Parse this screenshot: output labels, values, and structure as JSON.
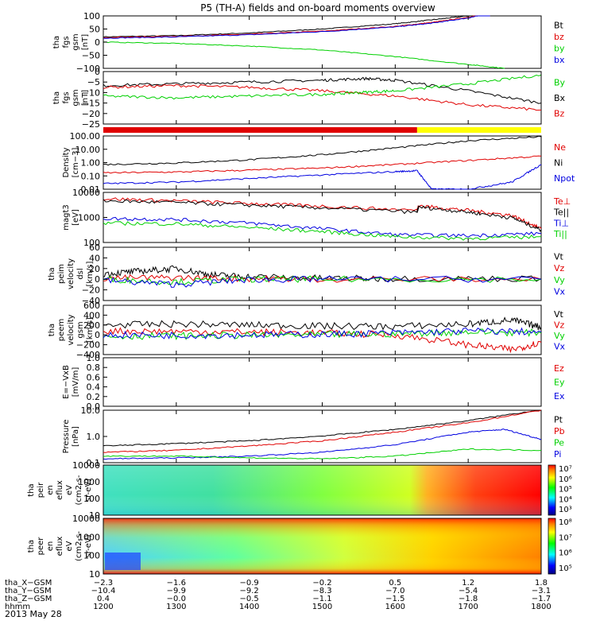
{
  "title": "P5 (TH-A) fields and on-board moments overview",
  "date": "2013 May 28",
  "colors": {
    "black": "#000000",
    "red": "#e00000",
    "green": "#00d000",
    "blue": "#0000e0",
    "yellow": "#ffff00"
  },
  "chart_data": [
    {
      "id": "fgs_gsm",
      "type": "line",
      "ylabel": [
        "tha",
        "fgs",
        "gsm",
        "[nT]"
      ],
      "yticks": [
        "100",
        "50",
        "0",
        "−50",
        "−100"
      ],
      "yrange": [
        -100,
        100
      ],
      "legend": [
        "Bt",
        "bz",
        "by",
        "bx"
      ],
      "series": [
        {
          "name": "Bt",
          "color": "#000000",
          "x": [
            1200,
            1300,
            1400,
            1500,
            1600,
            1650,
            1700,
            1730
          ],
          "y": [
            20,
            25,
            35,
            50,
            70,
            85,
            100,
            115
          ]
        },
        {
          "name": "bz",
          "color": "#e00000",
          "x": [
            1200,
            1300,
            1400,
            1500,
            1600,
            1650,
            1700,
            1730
          ],
          "y": [
            18,
            22,
            30,
            42,
            60,
            75,
            95,
            110
          ]
        },
        {
          "name": "bx",
          "color": "#0000e0",
          "x": [
            1200,
            1300,
            1400,
            1500,
            1600,
            1650,
            1700,
            1730
          ],
          "y": [
            15,
            20,
            28,
            40,
            58,
            72,
            92,
            110
          ]
        },
        {
          "name": "by",
          "color": "#00d000",
          "x": [
            1200,
            1300,
            1400,
            1500,
            1600,
            1700,
            1750
          ],
          "y": [
            0,
            -5,
            -15,
            -30,
            -55,
            -85,
            -100
          ]
        }
      ]
    },
    {
      "id": "fgs_gsm_zoom",
      "type": "line",
      "ylabel": [
        "tha",
        "fgs",
        "gsm",
        "[nT]"
      ],
      "yticks": [
        "0",
        "−5",
        "−10",
        "−15",
        "−20",
        "−25"
      ],
      "yrange": [
        -28,
        2
      ],
      "legend": [
        "By",
        "Bx",
        "Bz"
      ],
      "series": [
        {
          "name": "Bx",
          "color": "#000000",
          "x": [
            1200,
            1300,
            1400,
            1500,
            1560,
            1600,
            1700,
            1800
          ],
          "y": [
            -6,
            -5,
            -4,
            -3,
            -2,
            -3,
            -9,
            -16
          ]
        },
        {
          "name": "Bz",
          "color": "#e00000",
          "x": [
            1200,
            1300,
            1400,
            1500,
            1600,
            1700,
            1800
          ],
          "y": [
            -7,
            -6,
            -7,
            -9,
            -12,
            -17,
            -20
          ]
        },
        {
          "name": "By",
          "color": "#00d000",
          "x": [
            1200,
            1300,
            1400,
            1500,
            1550,
            1600,
            1700,
            1800
          ],
          "y": [
            -12,
            -13,
            -12,
            -11,
            -10,
            -9,
            -5,
            0
          ]
        }
      ]
    },
    {
      "id": "density",
      "type": "line",
      "log": true,
      "ylabel": [
        "Density",
        "[cm−3]"
      ],
      "yticks": [
        "100.00",
        "10.00",
        "1.00",
        "0.10",
        "0.01"
      ],
      "yrange": [
        0.005,
        150
      ],
      "legend": [
        "Ne",
        "Ni",
        "Npot"
      ],
      "series": [
        {
          "name": "Ni",
          "color": "#000000",
          "x": [
            1200,
            1300,
            1400,
            1500,
            1600,
            1700,
            1800
          ],
          "y": [
            0.6,
            0.8,
            1.5,
            4,
            15,
            60,
            130
          ]
        },
        {
          "name": "Ne",
          "color": "#e00000",
          "x": [
            1200,
            1300,
            1400,
            1500,
            1600,
            1700,
            1800
          ],
          "y": [
            0.12,
            0.14,
            0.2,
            0.3,
            0.6,
            1.3,
            3
          ]
        },
        {
          "name": "Npot",
          "color": "#0000e0",
          "x": [
            1200,
            1300,
            1400,
            1500,
            1600,
            1630,
            1650,
            1700,
            1760,
            1800
          ],
          "y": [
            0.015,
            0.02,
            0.04,
            0.08,
            0.15,
            0.18,
            0.005,
            0.005,
            0.02,
            0.6
          ]
        }
      ]
    },
    {
      "id": "temperature",
      "type": "line",
      "log": true,
      "ylabel": [
        "magt3",
        "[eV]"
      ],
      "yticks": [
        "10000",
        "1000",
        "100"
      ],
      "yrange": [
        100,
        15000
      ],
      "legend": [
        "Te⊥",
        "Te||",
        "Ti⊥",
        "Ti||"
      ],
      "series": [
        {
          "name": "Te⊥",
          "color": "#e00000",
          "x": [
            1200,
            1300,
            1400,
            1500,
            1630,
            1632,
            1700,
            1760,
            1800
          ],
          "y": [
            8000,
            6500,
            5000,
            3800,
            2500,
            4000,
            2500,
            1500,
            400
          ]
        },
        {
          "name": "Te||",
          "color": "#000000",
          "x": [
            1200,
            1300,
            1400,
            1500,
            1630,
            1632,
            1700,
            1760,
            1800
          ],
          "y": [
            6500,
            5500,
            4200,
            3200,
            2100,
            3500,
            2100,
            1200,
            350
          ]
        },
        {
          "name": "Ti⊥",
          "color": "#0000e0",
          "x": [
            1200,
            1300,
            1400,
            1500,
            1600,
            1700,
            1800
          ],
          "y": [
            1100,
            1000,
            700,
            400,
            220,
            200,
            250
          ]
        },
        {
          "name": "Ti||",
          "color": "#00d000",
          "x": [
            1200,
            1300,
            1400,
            1500,
            1600,
            1700,
            1800
          ],
          "y": [
            700,
            650,
            450,
            300,
            180,
            150,
            180
          ]
        }
      ]
    },
    {
      "id": "peim_velocity",
      "type": "line",
      "ylabel": [
        "tha",
        "peim",
        "velocity",
        "dsl",
        "[km/s]"
      ],
      "yticks": [
        "60",
        "40",
        "20",
        "0",
        "−20",
        "−40"
      ],
      "yrange": [
        -40,
        60
      ],
      "legend": [
        "Vt",
        "Vz",
        "Vy",
        "Vx"
      ],
      "series": [
        {
          "name": "Vt",
          "color": "#000000",
          "x": [
            1200,
            1250,
            1300,
            1350,
            1400,
            1500,
            1600,
            1800
          ],
          "y": [
            10,
            15,
            20,
            8,
            5,
            2,
            1,
            1
          ]
        },
        {
          "name": "Vz",
          "color": "#e00000",
          "x": [
            1200,
            1300,
            1400,
            1500,
            1800
          ],
          "y": [
            2,
            3,
            1,
            0,
            0
          ]
        },
        {
          "name": "Vy",
          "color": "#00d000",
          "x": [
            1200,
            1300,
            1400,
            1500,
            1800
          ],
          "y": [
            0,
            -5,
            0,
            0,
            0
          ]
        },
        {
          "name": "Vx",
          "color": "#0000e0",
          "x": [
            1200,
            1300,
            1400,
            1500,
            1800
          ],
          "y": [
            -2,
            -10,
            -1,
            0,
            0
          ]
        }
      ]
    },
    {
      "id": "peem_velocity",
      "type": "line",
      "ylabel": [
        "tha",
        "peem",
        "velocity",
        "gsm",
        "[km/s]"
      ],
      "yticks": [
        "600",
        "400",
        "200",
        "0",
        "−200",
        "−400"
      ],
      "yrange": [
        -400,
        600
      ],
      "legend": [
        "Vt",
        "Vz",
        "Vy",
        "Vx"
      ],
      "series": [
        {
          "name": "Vt",
          "color": "#000000",
          "x": [
            1200,
            1300,
            1400,
            1500,
            1600,
            1700,
            1760,
            1800
          ],
          "y": [
            200,
            220,
            200,
            180,
            170,
            220,
            300,
            150
          ]
        },
        {
          "name": "Vz",
          "color": "#e00000",
          "x": [
            1200,
            1300,
            1400,
            1500,
            1600,
            1700,
            1760,
            1800
          ],
          "y": [
            80,
            70,
            60,
            40,
            0,
            -200,
            -300,
            -150
          ]
        },
        {
          "name": "Vy",
          "color": "#00d000",
          "x": [
            1200,
            1300,
            1400,
            1500,
            1600,
            1700,
            1800
          ],
          "y": [
            -30,
            -20,
            -10,
            0,
            20,
            60,
            40
          ]
        },
        {
          "name": "Vx",
          "color": "#0000e0",
          "x": [
            1200,
            1300,
            1400,
            1500,
            1600,
            1700,
            1800
          ],
          "y": [
            0,
            -10,
            0,
            10,
            40,
            80,
            60
          ]
        }
      ]
    },
    {
      "id": "efield",
      "type": "line",
      "ylabel": [
        "E=−VxB",
        "[mV/m]"
      ],
      "yticks": [
        "1.0",
        "0.8",
        "0.6",
        "0.4",
        "0.2",
        "0.0"
      ],
      "yrange": [
        0,
        1
      ],
      "legend": [
        "Ez",
        "Ey",
        "Ex"
      ],
      "series": []
    },
    {
      "id": "pressure",
      "type": "line",
      "log": true,
      "ylabel": [
        "Pressure",
        "[nPa]"
      ],
      "yticks": [
        "10.0",
        "1.0",
        "0.1"
      ],
      "yrange": [
        0.06,
        15
      ],
      "legend": [
        "Pt",
        "Pb",
        "Pe",
        "Pi"
      ],
      "series": [
        {
          "name": "Pt",
          "color": "#000000",
          "x": [
            1200,
            1300,
            1400,
            1500,
            1600,
            1700,
            1800
          ],
          "y": [
            0.35,
            0.45,
            0.6,
            1.0,
            2.0,
            5.0,
            16
          ]
        },
        {
          "name": "Pb",
          "color": "#e00000",
          "x": [
            1200,
            1300,
            1400,
            1500,
            1600,
            1700,
            1800
          ],
          "y": [
            0.18,
            0.22,
            0.35,
            0.6,
            1.5,
            4.0,
            15
          ]
        },
        {
          "name": "Pi",
          "color": "#0000e0",
          "x": [
            1200,
            1300,
            1400,
            1500,
            1600,
            1700,
            1750,
            1800
          ],
          "y": [
            0.09,
            0.1,
            0.12,
            0.18,
            0.4,
            1.5,
            2.0,
            0.7
          ]
        },
        {
          "name": "Pe",
          "color": "#00d000",
          "x": [
            1200,
            1300,
            1400,
            1500,
            1600,
            1700,
            1800
          ],
          "y": [
            0.12,
            0.12,
            0.1,
            0.09,
            0.12,
            0.25,
            0.22
          ]
        }
      ]
    },
    {
      "id": "peir_spec",
      "type": "heatmap",
      "ylabel": [
        "tha",
        "peir",
        "en",
        "eflux",
        "eV",
        "(cm2-s-",
        "sr-eV)"
      ],
      "yticks": [
        "10000",
        "1000",
        "100",
        "10"
      ],
      "colorbar": [
        "10⁷",
        "10⁶",
        "10⁵",
        "10⁴",
        "10³"
      ]
    },
    {
      "id": "peer_spec",
      "type": "heatmap",
      "ylabel": [
        "tha",
        "peer",
        "en",
        "eflux",
        "eV",
        "(cm2-s-",
        "sr-eV)"
      ],
      "yticks": [
        "10000",
        "1000",
        "100",
        "10"
      ],
      "colorbar": [
        "10⁸",
        "10⁷",
        "10⁶",
        "10⁵"
      ]
    }
  ],
  "state_bar": {
    "x_split": 1630
  },
  "xaxis": {
    "rows": [
      {
        "label": "tha_X−GSM",
        "values": [
          "−2.3",
          "−1.6",
          "−0.9",
          "−0.2",
          "0.5",
          "1.2",
          "1.8"
        ]
      },
      {
        "label": "tha_Y−GSM",
        "values": [
          "−10.4",
          "−9.9",
          "−9.2",
          "−8.3",
          "−7.0",
          "−5.4",
          "−3.1"
        ]
      },
      {
        "label": "tha_Z−GSM",
        "values": [
          "0.4",
          "−0.0",
          "−0.5",
          "−1.1",
          "−1.5",
          "−1.8",
          "−1.7"
        ]
      },
      {
        "label": "hhmm",
        "values": [
          "1200",
          "1300",
          "1400",
          "1500",
          "1600",
          "1700",
          "1800"
        ]
      }
    ]
  }
}
